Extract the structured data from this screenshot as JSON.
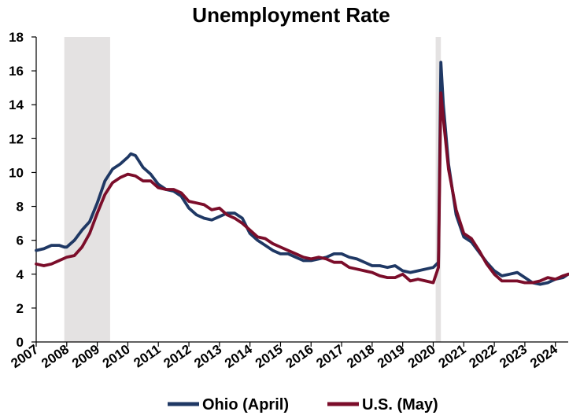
{
  "chart_data": {
    "type": "line",
    "title": "Unemployment Rate",
    "xlabel": "",
    "ylabel": "",
    "xlim": [
      2007,
      2024.42
    ],
    "ylim": [
      0,
      18
    ],
    "y_ticks": [
      0,
      2,
      4,
      6,
      8,
      10,
      12,
      14,
      16,
      18
    ],
    "x_tick_labels": [
      "2007",
      "2008",
      "2009",
      "2010",
      "2011",
      "2012",
      "2013",
      "2014",
      "2015",
      "2016",
      "2017",
      "2018",
      "2019",
      "2020",
      "2021",
      "2022",
      "2023",
      "2024"
    ],
    "grid": false,
    "legend_position": "bottom",
    "recessions": [
      [
        2007.92,
        2009.42
      ],
      [
        2020.08,
        2020.25
      ]
    ],
    "recession_color": "#e4e2e2",
    "series": [
      {
        "name": "Ohio (April)",
        "color": "#1f3864",
        "points": [
          [
            2007.0,
            5.4
          ],
          [
            2007.25,
            5.5
          ],
          [
            2007.5,
            5.7
          ],
          [
            2007.75,
            5.7
          ],
          [
            2007.92,
            5.6
          ],
          [
            2008.0,
            5.6
          ],
          [
            2008.25,
            6.0
          ],
          [
            2008.5,
            6.6
          ],
          [
            2008.75,
            7.1
          ],
          [
            2009.0,
            8.2
          ],
          [
            2009.25,
            9.5
          ],
          [
            2009.5,
            10.2
          ],
          [
            2009.75,
            10.5
          ],
          [
            2010.0,
            10.9
          ],
          [
            2010.1,
            11.1
          ],
          [
            2010.25,
            11.0
          ],
          [
            2010.5,
            10.3
          ],
          [
            2010.75,
            9.9
          ],
          [
            2011.0,
            9.3
          ],
          [
            2011.25,
            9.0
          ],
          [
            2011.5,
            8.9
          ],
          [
            2011.75,
            8.6
          ],
          [
            2012.0,
            7.9
          ],
          [
            2012.25,
            7.5
          ],
          [
            2012.5,
            7.3
          ],
          [
            2012.75,
            7.2
          ],
          [
            2013.0,
            7.4
          ],
          [
            2013.25,
            7.6
          ],
          [
            2013.5,
            7.6
          ],
          [
            2013.75,
            7.3
          ],
          [
            2014.0,
            6.4
          ],
          [
            2014.25,
            6.0
          ],
          [
            2014.5,
            5.7
          ],
          [
            2014.75,
            5.4
          ],
          [
            2015.0,
            5.2
          ],
          [
            2015.25,
            5.2
          ],
          [
            2015.5,
            5.0
          ],
          [
            2015.75,
            4.8
          ],
          [
            2016.0,
            4.8
          ],
          [
            2016.25,
            4.9
          ],
          [
            2016.5,
            5.0
          ],
          [
            2016.75,
            5.2
          ],
          [
            2017.0,
            5.2
          ],
          [
            2017.25,
            5.0
          ],
          [
            2017.5,
            4.9
          ],
          [
            2017.75,
            4.7
          ],
          [
            2018.0,
            4.5
          ],
          [
            2018.25,
            4.5
          ],
          [
            2018.5,
            4.4
          ],
          [
            2018.75,
            4.5
          ],
          [
            2019.0,
            4.2
          ],
          [
            2019.25,
            4.1
          ],
          [
            2019.5,
            4.2
          ],
          [
            2019.75,
            4.3
          ],
          [
            2020.0,
            4.4
          ],
          [
            2020.17,
            4.7
          ],
          [
            2020.25,
            16.5
          ],
          [
            2020.33,
            14.0
          ],
          [
            2020.5,
            10.5
          ],
          [
            2020.75,
            7.5
          ],
          [
            2021.0,
            6.2
          ],
          [
            2021.25,
            5.9
          ],
          [
            2021.5,
            5.3
          ],
          [
            2021.75,
            4.7
          ],
          [
            2022.0,
            4.2
          ],
          [
            2022.25,
            3.9
          ],
          [
            2022.5,
            4.0
          ],
          [
            2022.75,
            4.1
          ],
          [
            2023.0,
            3.8
          ],
          [
            2023.25,
            3.5
          ],
          [
            2023.5,
            3.4
          ],
          [
            2023.75,
            3.5
          ],
          [
            2024.0,
            3.7
          ],
          [
            2024.25,
            3.8
          ],
          [
            2024.42,
            4.0
          ]
        ]
      },
      {
        "name": "U.S. (May)",
        "color": "#7b0d2a",
        "points": [
          [
            2007.0,
            4.6
          ],
          [
            2007.25,
            4.5
          ],
          [
            2007.5,
            4.6
          ],
          [
            2007.75,
            4.8
          ],
          [
            2008.0,
            5.0
          ],
          [
            2008.25,
            5.1
          ],
          [
            2008.5,
            5.6
          ],
          [
            2008.75,
            6.4
          ],
          [
            2009.0,
            7.6
          ],
          [
            2009.25,
            8.7
          ],
          [
            2009.5,
            9.4
          ],
          [
            2009.75,
            9.7
          ],
          [
            2010.0,
            9.9
          ],
          [
            2010.25,
            9.8
          ],
          [
            2010.5,
            9.5
          ],
          [
            2010.75,
            9.5
          ],
          [
            2011.0,
            9.1
          ],
          [
            2011.25,
            9.0
          ],
          [
            2011.5,
            9.0
          ],
          [
            2011.75,
            8.8
          ],
          [
            2012.0,
            8.3
          ],
          [
            2012.25,
            8.2
          ],
          [
            2012.5,
            8.1
          ],
          [
            2012.75,
            7.8
          ],
          [
            2013.0,
            7.9
          ],
          [
            2013.25,
            7.5
          ],
          [
            2013.5,
            7.3
          ],
          [
            2013.75,
            7.0
          ],
          [
            2014.0,
            6.6
          ],
          [
            2014.25,
            6.2
          ],
          [
            2014.5,
            6.1
          ],
          [
            2014.75,
            5.8
          ],
          [
            2015.0,
            5.6
          ],
          [
            2015.25,
            5.4
          ],
          [
            2015.5,
            5.2
          ],
          [
            2015.75,
            5.0
          ],
          [
            2016.0,
            4.9
          ],
          [
            2016.25,
            5.0
          ],
          [
            2016.5,
            4.9
          ],
          [
            2016.75,
            4.7
          ],
          [
            2017.0,
            4.7
          ],
          [
            2017.25,
            4.4
          ],
          [
            2017.5,
            4.3
          ],
          [
            2017.75,
            4.2
          ],
          [
            2018.0,
            4.1
          ],
          [
            2018.25,
            3.9
          ],
          [
            2018.5,
            3.8
          ],
          [
            2018.75,
            3.8
          ],
          [
            2019.0,
            4.0
          ],
          [
            2019.25,
            3.6
          ],
          [
            2019.5,
            3.7
          ],
          [
            2019.75,
            3.6
          ],
          [
            2020.0,
            3.5
          ],
          [
            2020.17,
            4.4
          ],
          [
            2020.25,
            14.7
          ],
          [
            2020.33,
            13.2
          ],
          [
            2020.5,
            10.2
          ],
          [
            2020.75,
            7.8
          ],
          [
            2021.0,
            6.4
          ],
          [
            2021.25,
            6.1
          ],
          [
            2021.5,
            5.4
          ],
          [
            2021.75,
            4.6
          ],
          [
            2022.0,
            4.0
          ],
          [
            2022.25,
            3.6
          ],
          [
            2022.5,
            3.6
          ],
          [
            2022.75,
            3.6
          ],
          [
            2023.0,
            3.5
          ],
          [
            2023.25,
            3.5
          ],
          [
            2023.5,
            3.6
          ],
          [
            2023.75,
            3.8
          ],
          [
            2024.0,
            3.7
          ],
          [
            2024.25,
            3.9
          ],
          [
            2024.42,
            4.0
          ]
        ]
      }
    ]
  }
}
